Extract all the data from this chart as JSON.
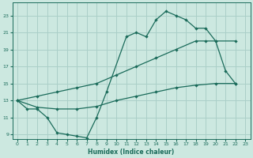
{
  "xlabel": "Humidex (Indice chaleur)",
  "bg_color": "#cce8e0",
  "grid_color": "#aacfc8",
  "line_color": "#1a6b5a",
  "xlim": [
    -0.5,
    23.5
  ],
  "ylim": [
    8.5,
    24.5
  ],
  "xticks": [
    0,
    1,
    2,
    3,
    4,
    5,
    6,
    7,
    8,
    9,
    10,
    11,
    12,
    13,
    14,
    15,
    16,
    17,
    18,
    19,
    20,
    21,
    22,
    23
  ],
  "yticks": [
    9,
    11,
    13,
    15,
    17,
    19,
    21,
    23
  ],
  "line1_x": [
    0,
    1,
    2,
    3,
    4,
    5,
    6,
    7,
    8,
    9,
    11,
    12,
    13,
    14,
    15,
    16,
    17,
    18,
    19,
    20,
    21,
    22
  ],
  "line1_y": [
    13,
    12,
    12,
    11,
    9.2,
    9,
    8.8,
    8.6,
    11,
    14,
    20.5,
    21,
    20.5,
    22.5,
    23.5,
    23,
    22.5,
    21.5,
    21.5,
    20,
    16.5,
    15
  ],
  "line2_x": [
    0,
    2,
    4,
    6,
    8,
    10,
    12,
    14,
    16,
    18,
    19,
    20,
    22
  ],
  "line2_y": [
    13,
    13.5,
    14,
    14.5,
    15,
    16,
    17,
    18,
    19,
    20,
    20,
    20,
    20
  ],
  "line3_x": [
    0,
    2,
    4,
    6,
    8,
    10,
    12,
    14,
    16,
    18,
    20,
    22
  ],
  "line3_y": [
    13,
    12.2,
    12,
    12,
    12.3,
    13,
    13.5,
    14,
    14.5,
    14.8,
    15,
    15
  ]
}
